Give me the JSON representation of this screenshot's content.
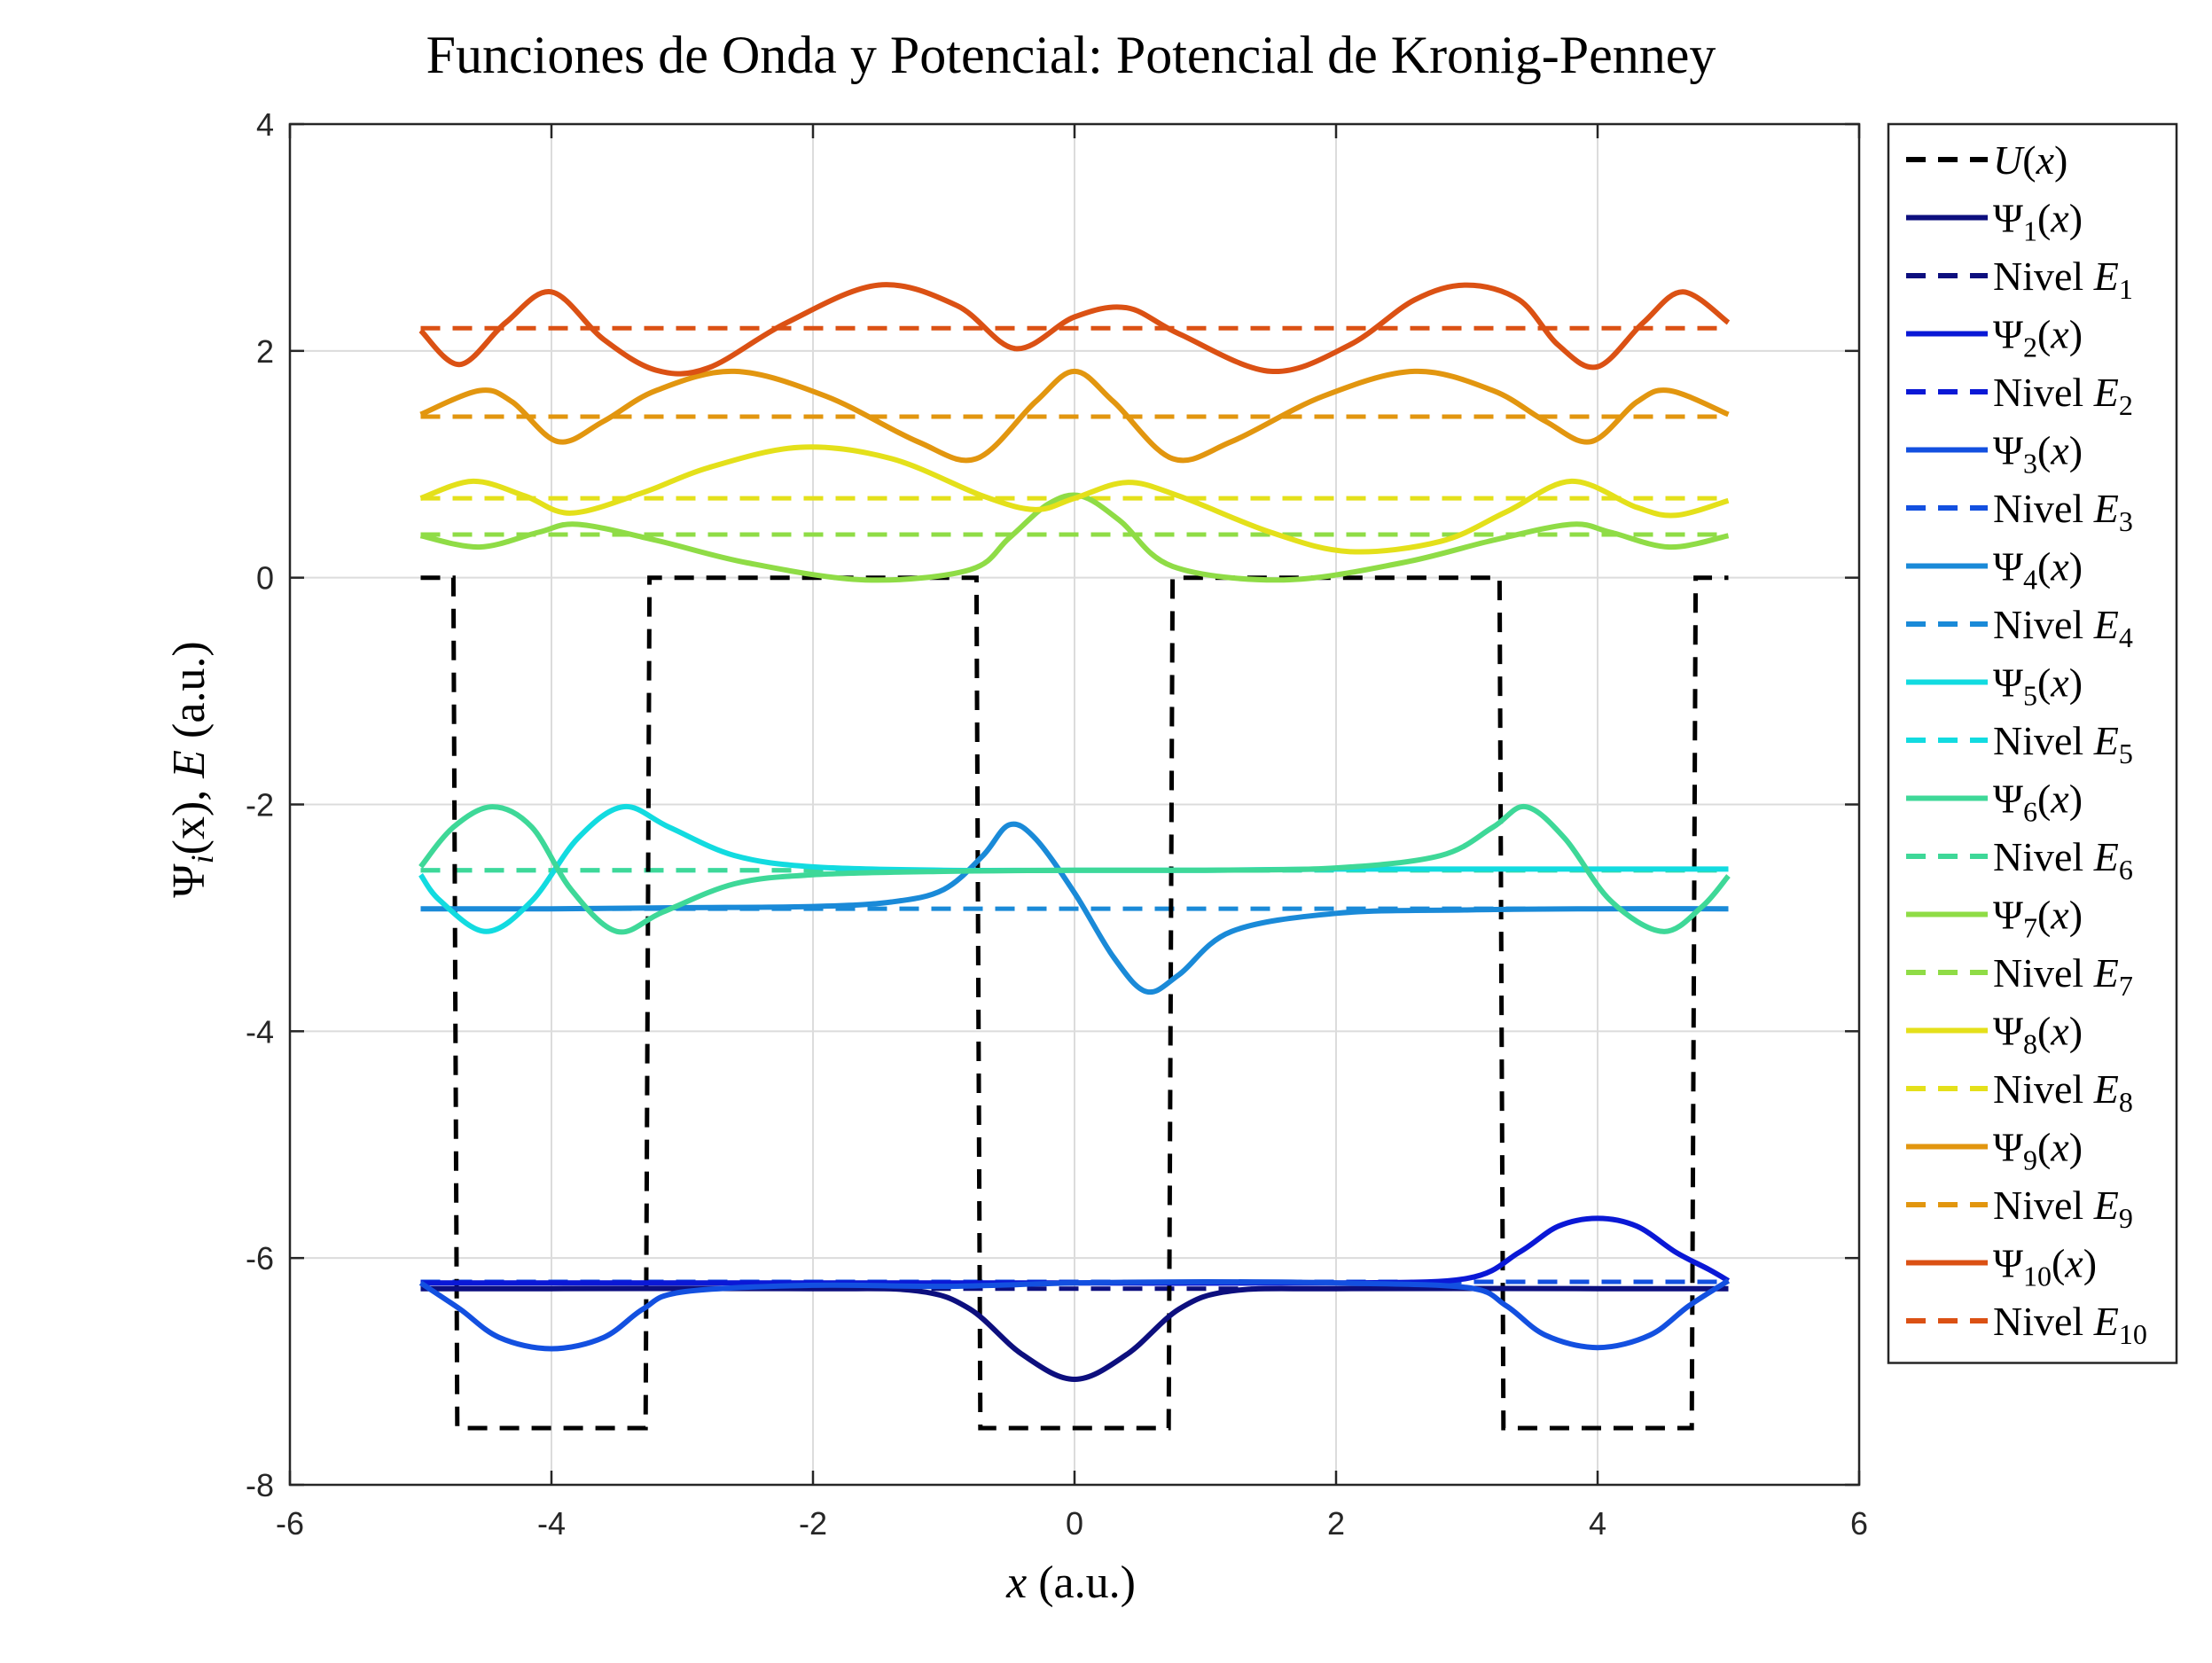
{
  "chart_data": {
    "type": "line",
    "title": "Funciones de Onda y Potencial: Potencial de Kronig-Penney",
    "xlabel": {
      "main": "x",
      "units": " (a.u.)"
    },
    "ylabel": {
      "psi": "Ψ",
      "sub": "i",
      "mid": "(x), ",
      "E": "E",
      "units": " (a.u.)"
    },
    "xlim": [
      -6,
      6
    ],
    "ylim": [
      -8,
      4
    ],
    "xticks": [
      -6,
      -4,
      -2,
      0,
      2,
      4,
      6
    ],
    "yticks": [
      -8,
      -6,
      -4,
      -2,
      0,
      2,
      4
    ],
    "xtick_labels": [
      "-6",
      "-4",
      "-2",
      "0",
      "2",
      "4",
      "6"
    ],
    "ytick_labels": [
      "-8",
      "-6",
      "-4",
      "-2",
      "0",
      "2",
      "4"
    ],
    "grid": true,
    "legend_position": "outside-right",
    "potential": {
      "label": "U(x)",
      "color": "#000000",
      "points": [
        [
          -5,
          0
        ],
        [
          -4.75,
          0
        ],
        [
          -4.72,
          -7.5
        ],
        [
          -3.28,
          -7.5
        ],
        [
          -3.25,
          0
        ],
        [
          -0.75,
          0
        ],
        [
          -0.72,
          -7.5
        ],
        [
          0.72,
          -7.5
        ],
        [
          0.75,
          0
        ],
        [
          3.25,
          0
        ],
        [
          3.28,
          -7.5
        ],
        [
          4.72,
          -7.5
        ],
        [
          4.75,
          0
        ],
        [
          5,
          0
        ]
      ]
    },
    "series": [
      {
        "name": "Ψ1(x)",
        "sub": "1",
        "color": "#0d0f7e",
        "energy": -6.27,
        "points": [
          [
            -5,
            -6.27
          ],
          [
            -4,
            -6.27
          ],
          [
            -2,
            -6.27
          ],
          [
            -1.2,
            -6.29
          ],
          [
            -0.8,
            -6.45
          ],
          [
            -0.4,
            -6.85
          ],
          [
            0,
            -7.07
          ],
          [
            0.4,
            -6.85
          ],
          [
            0.8,
            -6.45
          ],
          [
            1.2,
            -6.29
          ],
          [
            2,
            -6.27
          ],
          [
            4,
            -6.27
          ],
          [
            5,
            -6.27
          ]
        ]
      },
      {
        "name": "Ψ2(x)",
        "sub": "2",
        "color": "#0a18d6",
        "energy": -6.21,
        "points": [
          [
            -5,
            -6.22
          ],
          [
            -4,
            -6.22
          ],
          [
            -2,
            -6.22
          ],
          [
            0,
            -6.22
          ],
          [
            2,
            -6.22
          ],
          [
            3,
            -6.18
          ],
          [
            3.4,
            -5.95
          ],
          [
            3.7,
            -5.72
          ],
          [
            4,
            -5.65
          ],
          [
            4.3,
            -5.72
          ],
          [
            4.6,
            -5.95
          ],
          [
            4.85,
            -6.1
          ],
          [
            5,
            -6.2
          ]
        ]
      },
      {
        "name": "Ψ3(x)",
        "sub": "3",
        "color": "#1350e0",
        "energy": -6.21,
        "points": [
          [
            -5,
            -6.22
          ],
          [
            -4.7,
            -6.45
          ],
          [
            -4.4,
            -6.7
          ],
          [
            -4,
            -6.8
          ],
          [
            -3.6,
            -6.7
          ],
          [
            -3.3,
            -6.45
          ],
          [
            -3,
            -6.3
          ],
          [
            -2,
            -6.24
          ],
          [
            -1,
            -6.25
          ],
          [
            0,
            -6.22
          ],
          [
            1,
            -6.21
          ],
          [
            2,
            -6.22
          ],
          [
            3,
            -6.26
          ],
          [
            3.3,
            -6.42
          ],
          [
            3.6,
            -6.68
          ],
          [
            4,
            -6.79
          ],
          [
            4.4,
            -6.68
          ],
          [
            4.7,
            -6.42
          ],
          [
            5,
            -6.2
          ]
        ]
      },
      {
        "name": "Ψ4(x)",
        "sub": "4",
        "color": "#1a8ad8",
        "energy": -2.92,
        "points": [
          [
            -5,
            -2.92
          ],
          [
            -4,
            -2.92
          ],
          [
            -3,
            -2.91
          ],
          [
            -2,
            -2.9
          ],
          [
            -1.4,
            -2.86
          ],
          [
            -1,
            -2.75
          ],
          [
            -0.7,
            -2.45
          ],
          [
            -0.5,
            -2.18
          ],
          [
            -0.3,
            -2.3
          ],
          [
            0,
            -2.78
          ],
          [
            0.3,
            -3.35
          ],
          [
            0.55,
            -3.65
          ],
          [
            0.8,
            -3.5
          ],
          [
            1.2,
            -3.12
          ],
          [
            2,
            -2.96
          ],
          [
            3,
            -2.93
          ],
          [
            4,
            -2.92
          ],
          [
            5,
            -2.92
          ]
        ]
      },
      {
        "name": "Ψ5(x)",
        "sub": "5",
        "color": "#12dbe0",
        "energy": -2.58,
        "points": [
          [
            -5,
            -2.62
          ],
          [
            -4.85,
            -2.85
          ],
          [
            -4.5,
            -3.12
          ],
          [
            -4.15,
            -2.85
          ],
          [
            -3.8,
            -2.3
          ],
          [
            -3.45,
            -2.02
          ],
          [
            -3.1,
            -2.2
          ],
          [
            -2.6,
            -2.45
          ],
          [
            -2,
            -2.55
          ],
          [
            -1,
            -2.58
          ],
          [
            0,
            -2.58
          ],
          [
            1,
            -2.58
          ],
          [
            2,
            -2.57
          ],
          [
            3,
            -2.57
          ],
          [
            4,
            -2.57
          ],
          [
            5,
            -2.57
          ]
        ]
      },
      {
        "name": "Ψ6(x)",
        "sub": "6",
        "color": "#3ed898",
        "energy": -2.58,
        "points": [
          [
            -5,
            -2.55
          ],
          [
            -4.75,
            -2.2
          ],
          [
            -4.45,
            -2.02
          ],
          [
            -4.15,
            -2.2
          ],
          [
            -3.85,
            -2.75
          ],
          [
            -3.5,
            -3.12
          ],
          [
            -3.15,
            -2.95
          ],
          [
            -2.6,
            -2.7
          ],
          [
            -2,
            -2.62
          ],
          [
            -1,
            -2.59
          ],
          [
            0,
            -2.58
          ],
          [
            1,
            -2.58
          ],
          [
            2,
            -2.56
          ],
          [
            2.8,
            -2.45
          ],
          [
            3.2,
            -2.2
          ],
          [
            3.45,
            -2.02
          ],
          [
            3.75,
            -2.3
          ],
          [
            4.1,
            -2.85
          ],
          [
            4.5,
            -3.12
          ],
          [
            4.8,
            -2.9
          ],
          [
            5,
            -2.63
          ]
        ]
      },
      {
        "name": "Ψ7(x)",
        "sub": "7",
        "color": "#8fdc46",
        "energy": 0.38,
        "points": [
          [
            -5,
            0.37
          ],
          [
            -4.55,
            0.27
          ],
          [
            -4.1,
            0.4
          ],
          [
            -3.8,
            0.47
          ],
          [
            -3.2,
            0.33
          ],
          [
            -2.5,
            0.13
          ],
          [
            -1.6,
            -0.02
          ],
          [
            -0.8,
            0.07
          ],
          [
            -0.5,
            0.35
          ],
          [
            -0.2,
            0.65
          ],
          [
            0.05,
            0.72
          ],
          [
            0.35,
            0.5
          ],
          [
            0.75,
            0.1
          ],
          [
            1.6,
            -0.02
          ],
          [
            2.5,
            0.13
          ],
          [
            3.2,
            0.33
          ],
          [
            3.8,
            0.47
          ],
          [
            4.1,
            0.4
          ],
          [
            4.55,
            0.27
          ],
          [
            5,
            0.37
          ]
        ]
      },
      {
        "name": "Ψ8(x)",
        "sub": "8",
        "color": "#e4e01a",
        "energy": 0.7,
        "points": [
          [
            -5,
            0.7
          ],
          [
            -4.6,
            0.85
          ],
          [
            -4.2,
            0.72
          ],
          [
            -3.85,
            0.57
          ],
          [
            -3.3,
            0.75
          ],
          [
            -2.8,
            0.97
          ],
          [
            -2.1,
            1.15
          ],
          [
            -1.4,
            1.05
          ],
          [
            -0.7,
            0.72
          ],
          [
            -0.3,
            0.6
          ],
          [
            0,
            0.7
          ],
          [
            0.4,
            0.84
          ],
          [
            0.8,
            0.72
          ],
          [
            1.5,
            0.4
          ],
          [
            2.1,
            0.23
          ],
          [
            2.8,
            0.32
          ],
          [
            3.3,
            0.58
          ],
          [
            3.8,
            0.85
          ],
          [
            4.3,
            0.62
          ],
          [
            4.6,
            0.55
          ],
          [
            5,
            0.68
          ]
        ]
      },
      {
        "name": "Ψ9(x)",
        "sub": "9",
        "color": "#e2960f",
        "energy": 1.42,
        "points": [
          [
            -5,
            1.44
          ],
          [
            -4.55,
            1.65
          ],
          [
            -4.3,
            1.55
          ],
          [
            -3.95,
            1.2
          ],
          [
            -3.6,
            1.38
          ],
          [
            -3.2,
            1.65
          ],
          [
            -2.6,
            1.82
          ],
          [
            -1.9,
            1.6
          ],
          [
            -1.2,
            1.2
          ],
          [
            -0.75,
            1.05
          ],
          [
            -0.3,
            1.55
          ],
          [
            0,
            1.82
          ],
          [
            0.3,
            1.55
          ],
          [
            0.75,
            1.05
          ],
          [
            1.2,
            1.2
          ],
          [
            1.9,
            1.6
          ],
          [
            2.6,
            1.82
          ],
          [
            3.2,
            1.65
          ],
          [
            3.6,
            1.38
          ],
          [
            3.95,
            1.2
          ],
          [
            4.3,
            1.55
          ],
          [
            4.55,
            1.65
          ],
          [
            5,
            1.44
          ]
        ]
      },
      {
        "name": "Ψ10(x)",
        "sub": "10",
        "color": "#db5114",
        "energy": 2.2,
        "points": [
          [
            -5,
            2.18
          ],
          [
            -4.7,
            1.88
          ],
          [
            -4.35,
            2.25
          ],
          [
            -4,
            2.52
          ],
          [
            -3.6,
            2.1
          ],
          [
            -3.2,
            1.83
          ],
          [
            -2.8,
            1.85
          ],
          [
            -2.2,
            2.25
          ],
          [
            -1.5,
            2.58
          ],
          [
            -0.9,
            2.4
          ],
          [
            -0.45,
            2.02
          ],
          [
            0,
            2.3
          ],
          [
            0.4,
            2.38
          ],
          [
            0.8,
            2.15
          ],
          [
            1.5,
            1.82
          ],
          [
            2.1,
            2.05
          ],
          [
            2.6,
            2.45
          ],
          [
            3,
            2.58
          ],
          [
            3.4,
            2.45
          ],
          [
            3.7,
            2.05
          ],
          [
            4,
            1.86
          ],
          [
            4.35,
            2.25
          ],
          [
            4.65,
            2.52
          ],
          [
            5,
            2.25
          ]
        ]
      }
    ]
  }
}
